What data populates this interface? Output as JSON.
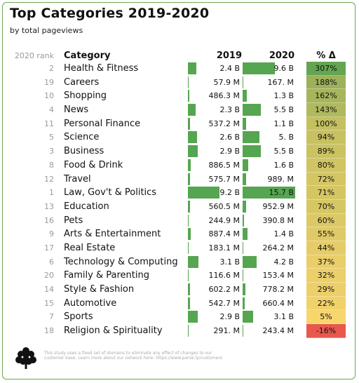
{
  "title": "Top Categories 2019-2020",
  "subtitle": "by total pageviews",
  "headers": {
    "rank": "2020 rank",
    "category": "Category",
    "y2019": "2019",
    "y2020": "2020",
    "pct": "% Δ"
  },
  "footnote": "This study uses a fixed set of domains to eliminate any effect of changes to our customer base. Learn more about our network here: https://www.parse.ly/customers",
  "colors": {
    "bar": "#56a550",
    "border": "#6aa84f",
    "pct_high": "#6aa84f",
    "pct_low": "#e8584d"
  },
  "chart_data": {
    "type": "table",
    "units": "billions of pageviews",
    "rows": [
      {
        "rank": "2",
        "category": "Health & Fitness",
        "v2019": 2.4,
        "label2019": "2.4 B",
        "v2020": 9.6,
        "label2020": "9.6 B",
        "pct": 307,
        "pct_label": "307%"
      },
      {
        "rank": "19",
        "category": "Careers",
        "v2019": 0.0579,
        "label2019": "57.9 M",
        "v2020": 0.167,
        "label2020": "167. M",
        "pct": 188,
        "pct_label": "188%"
      },
      {
        "rank": "10",
        "category": "Shopping",
        "v2019": 0.4863,
        "label2019": "486.3 M",
        "v2020": 1.3,
        "label2020": "1.3 B",
        "pct": 162,
        "pct_label": "162%"
      },
      {
        "rank": "4",
        "category": "News",
        "v2019": 2.3,
        "label2019": "2.3 B",
        "v2020": 5.5,
        "label2020": "5.5 B",
        "pct": 143,
        "pct_label": "143%"
      },
      {
        "rank": "11",
        "category": "Personal Finance",
        "v2019": 0.5372,
        "label2019": "537.2 M",
        "v2020": 1.1,
        "label2020": "1.1 B",
        "pct": 100,
        "pct_label": "100%"
      },
      {
        "rank": "5",
        "category": "Science",
        "v2019": 2.6,
        "label2019": "2.6 B",
        "v2020": 5.0,
        "label2020": "5. B",
        "pct": 94,
        "pct_label": "94%"
      },
      {
        "rank": "3",
        "category": "Business",
        "v2019": 2.9,
        "label2019": "2.9 B",
        "v2020": 5.5,
        "label2020": "5.5 B",
        "pct": 89,
        "pct_label": "89%"
      },
      {
        "rank": "8",
        "category": "Food & Drink",
        "v2019": 0.8865,
        "label2019": "886.5 M",
        "v2020": 1.6,
        "label2020": "1.6 B",
        "pct": 80,
        "pct_label": "80%"
      },
      {
        "rank": "12",
        "category": "Travel",
        "v2019": 0.5757,
        "label2019": "575.7 M",
        "v2020": 0.989,
        "label2020": "989. M",
        "pct": 72,
        "pct_label": "72%"
      },
      {
        "rank": "1",
        "category": "Law, Gov't & Politics",
        "v2019": 9.2,
        "label2019": "9.2 B",
        "v2020": 15.7,
        "label2020": "15.7 B",
        "pct": 71,
        "pct_label": "71%"
      },
      {
        "rank": "13",
        "category": "Education",
        "v2019": 0.5605,
        "label2019": "560.5 M",
        "v2020": 0.9529,
        "label2020": "952.9 M",
        "pct": 70,
        "pct_label": "70%"
      },
      {
        "rank": "16",
        "category": "Pets",
        "v2019": 0.2449,
        "label2019": "244.9 M",
        "v2020": 0.3908,
        "label2020": "390.8 M",
        "pct": 60,
        "pct_label": "60%"
      },
      {
        "rank": "9",
        "category": "Arts & Entertainment",
        "v2019": 0.8874,
        "label2019": "887.4 M",
        "v2020": 1.4,
        "label2020": "1.4 B",
        "pct": 55,
        "pct_label": "55%"
      },
      {
        "rank": "17",
        "category": "Real Estate",
        "v2019": 0.1831,
        "label2019": "183.1 M",
        "v2020": 0.2642,
        "label2020": "264.2 M",
        "pct": 44,
        "pct_label": "44%"
      },
      {
        "rank": "6",
        "category": "Technology & Computing",
        "v2019": 3.1,
        "label2019": "3.1 B",
        "v2020": 4.2,
        "label2020": "4.2 B",
        "pct": 37,
        "pct_label": "37%"
      },
      {
        "rank": "20",
        "category": "Family & Parenting",
        "v2019": 0.1166,
        "label2019": "116.6 M",
        "v2020": 0.1534,
        "label2020": "153.4 M",
        "pct": 32,
        "pct_label": "32%"
      },
      {
        "rank": "14",
        "category": "Style & Fashion",
        "v2019": 0.6022,
        "label2019": "602.2 M",
        "v2020": 0.7782,
        "label2020": "778.2 M",
        "pct": 29,
        "pct_label": "29%"
      },
      {
        "rank": "15",
        "category": "Automotive",
        "v2019": 0.5427,
        "label2019": "542.7 M",
        "v2020": 0.6604,
        "label2020": "660.4 M",
        "pct": 22,
        "pct_label": "22%"
      },
      {
        "rank": "7",
        "category": "Sports",
        "v2019": 2.9,
        "label2019": "2.9 B",
        "v2020": 3.1,
        "label2020": "3.1 B",
        "pct": 5,
        "pct_label": "5%"
      },
      {
        "rank": "18",
        "category": "Religion & Spirituality",
        "v2019": 0.291,
        "label2019": "291. M",
        "v2020": 0.2434,
        "label2020": "243.4 M",
        "pct": -16,
        "pct_label": "-16%"
      }
    ]
  }
}
